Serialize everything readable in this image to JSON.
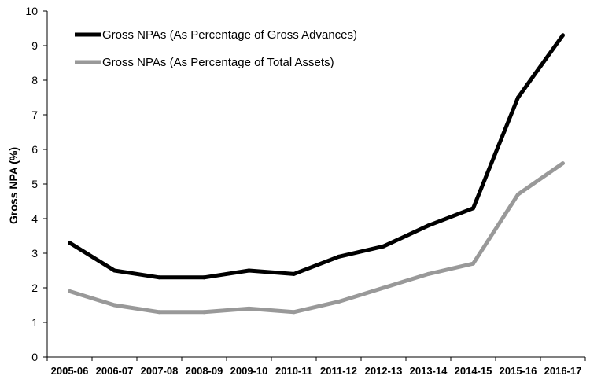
{
  "chart_data": {
    "type": "line",
    "title": "",
    "xlabel": "",
    "ylabel": "Gross NPA (%)",
    "categories": [
      "2005-06",
      "2006-07",
      "2007-08",
      "2008-09",
      "2009-10",
      "2010-11",
      "2011-12",
      "2012-13",
      "2013-14",
      "2014-15",
      "2015-16",
      "2016-17"
    ],
    "ylim": [
      0,
      10
    ],
    "yticks": [
      0,
      1,
      2,
      3,
      4,
      5,
      6,
      7,
      8,
      9,
      10
    ],
    "grid": false,
    "legend_position": "top-left",
    "series": [
      {
        "name": "Gross NPAs (As Percentage of Gross Advances)",
        "color": "#000000",
        "values": [
          3.3,
          2.5,
          2.3,
          2.3,
          2.5,
          2.4,
          2.9,
          3.2,
          3.8,
          4.3,
          7.5,
          9.3
        ]
      },
      {
        "name": "Gross NPAs (As Percentage of Total Assets)",
        "color": "#999999",
        "values": [
          1.9,
          1.5,
          1.3,
          1.3,
          1.4,
          1.3,
          1.6,
          2.0,
          2.4,
          2.7,
          4.7,
          5.6
        ]
      }
    ]
  }
}
